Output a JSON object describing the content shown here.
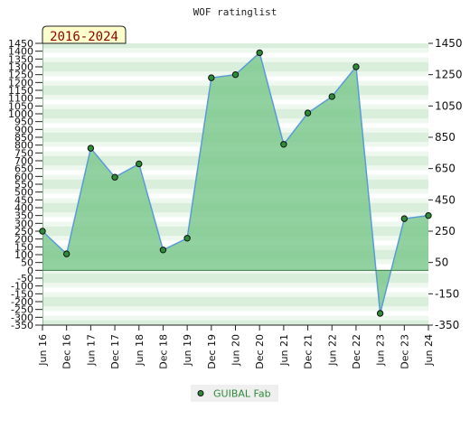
{
  "chart_data": {
    "type": "area",
    "title": "WOF ratinglist",
    "badge": "2016-2024",
    "x": [
      "Jun 16",
      "Dec 16",
      "Jun 17",
      "Dec 17",
      "Jun 18",
      "Dec 18",
      "Jun 19",
      "Dec 19",
      "Jun 20",
      "Dec 20",
      "Jun 21",
      "Dec 21",
      "Jun 22",
      "Dec 22",
      "Jun 23",
      "Dec 23",
      "Jun 24"
    ],
    "series": [
      {
        "name": "GUIBAL Fab",
        "values": [
          250,
          105,
          780,
          595,
          680,
          130,
          205,
          1230,
          1250,
          1390,
          805,
          1005,
          1110,
          1300,
          -275,
          330,
          350
        ]
      }
    ],
    "ylim": [
      -350,
      1450
    ],
    "y_ticks_left": [
      -350,
      -300,
      -250,
      -200,
      -150,
      -100,
      -50,
      0,
      50,
      100,
      150,
      200,
      250,
      300,
      350,
      400,
      450,
      500,
      550,
      600,
      650,
      700,
      750,
      800,
      850,
      900,
      950,
      1000,
      1050,
      1100,
      1150,
      1200,
      1250,
      1300,
      1350,
      1400,
      1450
    ],
    "y_ticks_right": [
      -350,
      -150,
      50,
      250,
      450,
      650,
      850,
      1050,
      1250,
      1450
    ],
    "grid": true,
    "legend_position": "bottom-center",
    "colors": {
      "fill": "#7fc98f",
      "line": "#5a9bd5",
      "marker": "#2e8b3a",
      "badge_bg": "#ffffcc",
      "legend_text": "#2e8b3a"
    }
  }
}
